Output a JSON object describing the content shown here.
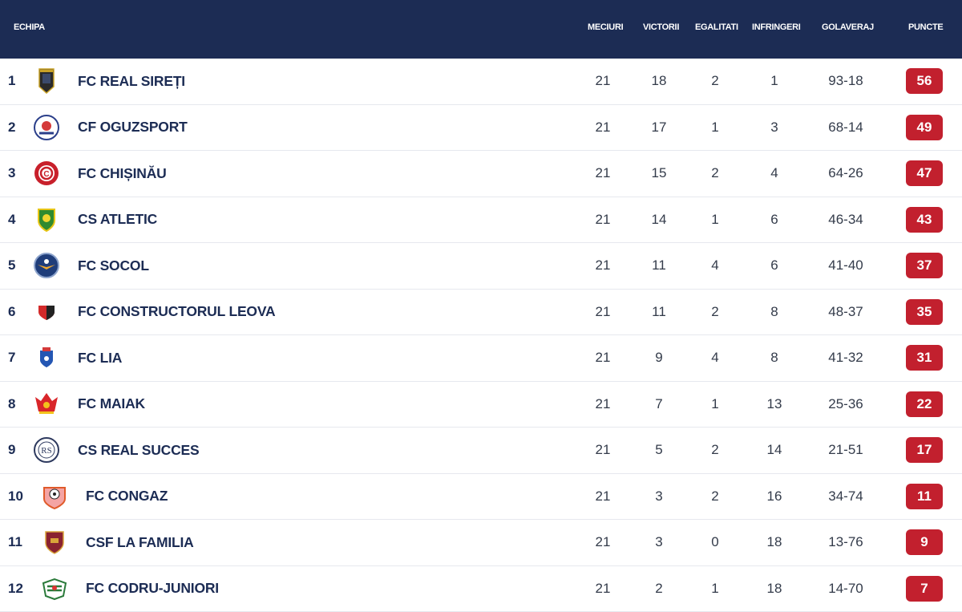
{
  "header": {
    "team": "ECHIPA",
    "played": "MECIURI",
    "wins": "VICTORII",
    "draws": "EGALITATI",
    "losses": "INFRINGERI",
    "goals": "GOLAVERAJ",
    "points": "PUNCTE"
  },
  "rows": [
    {
      "pos": "1",
      "team": "FC REAL SIREȚI",
      "played": "21",
      "wins": "18",
      "draws": "2",
      "losses": "1",
      "goals": "93-18",
      "points": "56",
      "logo": "shield-dark-crest-icon"
    },
    {
      "pos": "2",
      "team": "CF OGUZSPORT",
      "played": "21",
      "wins": "17",
      "draws": "1",
      "losses": "3",
      "goals": "68-14",
      "points": "49",
      "logo": "round-white-crest-icon"
    },
    {
      "pos": "3",
      "team": "FC CHIȘINĂU",
      "played": "21",
      "wins": "15",
      "draws": "2",
      "losses": "4",
      "goals": "64-26",
      "points": "47",
      "logo": "round-red-crest-icon"
    },
    {
      "pos": "4",
      "team": "CS ATLETIC",
      "played": "21",
      "wins": "14",
      "draws": "1",
      "losses": "6",
      "goals": "46-34",
      "points": "43",
      "logo": "green-yellow-shield-icon"
    },
    {
      "pos": "5",
      "team": "FC SOCOL",
      "played": "21",
      "wins": "11",
      "draws": "4",
      "losses": "6",
      "goals": "41-40",
      "points": "37",
      "logo": "round-blue-falcon-crest-icon"
    },
    {
      "pos": "6",
      "team": "FC CONSTRUCTORUL LEOVA",
      "played": "21",
      "wins": "11",
      "draws": "2",
      "losses": "8",
      "goals": "48-37",
      "points": "35",
      "logo": "red-black-shield-icon"
    },
    {
      "pos": "7",
      "team": "FC LIA",
      "played": "21",
      "wins": "9",
      "draws": "4",
      "losses": "8",
      "goals": "41-32",
      "points": "31",
      "logo": "blue-red-crest-icon"
    },
    {
      "pos": "8",
      "team": "FC MAIAK",
      "played": "21",
      "wins": "7",
      "draws": "1",
      "losses": "13",
      "goals": "25-36",
      "points": "22",
      "logo": "red-star-crest-icon"
    },
    {
      "pos": "9",
      "team": "CS REAL SUCCES",
      "played": "21",
      "wins": "5",
      "draws": "2",
      "losses": "14",
      "goals": "21-51",
      "points": "17",
      "logo": "round-rs-monogram-icon"
    },
    {
      "pos": "10",
      "team": "FC CONGAZ",
      "played": "21",
      "wins": "3",
      "draws": "2",
      "losses": "16",
      "goals": "34-74",
      "points": "11",
      "logo": "orange-ball-crest-icon"
    },
    {
      "pos": "11",
      "team": "CSF LA FAMILIA",
      "played": "21",
      "wins": "3",
      "draws": "0",
      "losses": "18",
      "goals": "13-76",
      "points": "9",
      "logo": "maroon-shield-icon"
    },
    {
      "pos": "12",
      "team": "FC CODRU-JUNIORI",
      "played": "21",
      "wins": "2",
      "draws": "1",
      "losses": "18",
      "goals": "14-70",
      "points": "7",
      "logo": "green-white-crest-icon"
    }
  ],
  "colors": {
    "header_bg": "#1c2c54",
    "text": "#1c2c54",
    "points_badge": "#c2202e"
  }
}
